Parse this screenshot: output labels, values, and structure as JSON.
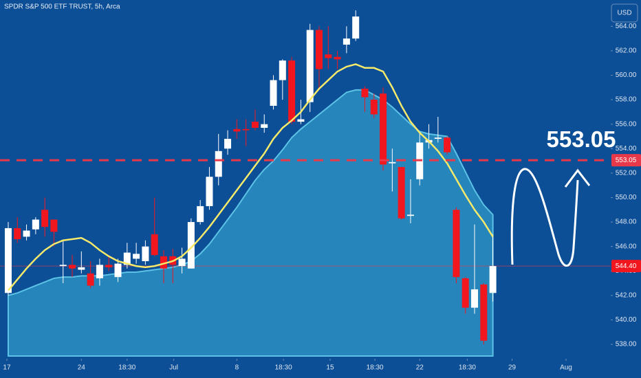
{
  "chart_data": {
    "type": "candlestick",
    "title": "SPDR S&P 500 ETF TRUST, 5h, Arca",
    "currency": "USD",
    "open": [
      542.2,
      547.5,
      546.8,
      547.4,
      549.0,
      548.2,
      544.4,
      544.5,
      544.1,
      543.8,
      543.4,
      544.5,
      543.5,
      544.5,
      545.0,
      544.8,
      547.0,
      545.2,
      545.2,
      544.4,
      544.2,
      548.0,
      549.3,
      551.7,
      554.0,
      555.6,
      555.6,
      556.2,
      555.7,
      557.5,
      559.6,
      561.2,
      556.2,
      557.8,
      563.7,
      561.7,
      561.5,
      562.5,
      563.0,
      558.9,
      558.0,
      558.5,
      552.8,
      552.5,
      548.5,
      551.5,
      554.5,
      554.8,
      554.9,
      549.0,
      543.4,
      541.0,
      542.9,
      542.2
    ],
    "high": [
      548.0,
      548.4,
      547.8,
      548.4,
      550.0,
      548.2,
      546.5,
      545.3,
      545.6,
      544.8,
      545.0,
      545.3,
      545.0,
      546.3,
      546.3,
      546.5,
      550.0,
      545.7,
      545.8,
      545.9,
      548.3,
      549.8,
      552.5,
      555.2,
      555.5,
      556.4,
      556.4,
      557.2,
      556.8,
      560.0,
      561.3,
      561.5,
      558.0,
      564.2,
      564.0,
      564.0,
      562.0,
      564.0,
      565.3,
      559.1,
      558.5,
      559.0,
      554.0,
      552.5,
      551.5,
      555.4,
      556.0,
      556.6,
      555.0,
      549.2,
      543.5,
      547.8,
      543.0,
      547.0
    ],
    "low": [
      542.0,
      546.3,
      546.5,
      547.0,
      546.8,
      546.0,
      543.0,
      543.5,
      543.8,
      542.6,
      542.8,
      544.0,
      543.1,
      544.2,
      544.6,
      544.5,
      545.2,
      543.0,
      543.0,
      543.8,
      544.2,
      547.8,
      549.0,
      551.0,
      553.5,
      554.8,
      554.2,
      555.5,
      555.3,
      557.2,
      558.0,
      556.0,
      556.0,
      557.0,
      558.8,
      560.5,
      560.5,
      561.8,
      562.8,
      557.0,
      556.5,
      552.2,
      550.5,
      548.2,
      547.9,
      551.0,
      554.0,
      554.5,
      553.5,
      543.0,
      540.5,
      540.5,
      538.0,
      541.5
    ],
    "close": [
      547.5,
      546.6,
      547.3,
      548.2,
      547.6,
      547.2,
      544.5,
      544.2,
      544.3,
      542.8,
      544.5,
      544.3,
      544.6,
      545.5,
      545.4,
      546.0,
      545.3,
      544.2,
      544.5,
      545.0,
      548.0,
      549.3,
      551.7,
      553.8,
      554.8,
      555.4,
      555.5,
      555.7,
      556.0,
      559.6,
      561.2,
      556.2,
      556.4,
      563.7,
      560.5,
      561.4,
      561.3,
      563.0,
      564.8,
      558.2,
      556.8,
      552.7,
      552.9,
      548.3,
      548.6,
      554.5,
      554.7,
      554.9,
      553.7,
      543.5,
      541.0,
      542.5,
      538.3,
      544.4
    ],
    "up_color": "#ffffff",
    "down_color": "#f2171e",
    "moving_average": {
      "color": "#f7e96a",
      "values": [
        542.4,
        543.3,
        544.2,
        545.0,
        545.7,
        546.2,
        546.5,
        546.6,
        546.7,
        546.3,
        545.7,
        545.2,
        544.8,
        544.6,
        544.4,
        544.3,
        544.4,
        544.6,
        544.8,
        545.2,
        545.9,
        546.7,
        547.6,
        548.6,
        549.6,
        550.6,
        551.6,
        552.6,
        553.6,
        554.8,
        555.7,
        556.3,
        557.0,
        558.0,
        558.9,
        559.6,
        560.3,
        560.7,
        560.9,
        560.6,
        560.6,
        560.3,
        559.0,
        557.5,
        556.2,
        555.3,
        554.6,
        553.8,
        552.8,
        551.5,
        550.2,
        549.0,
        548.0,
        546.8
      ]
    },
    "area": {
      "color": "#2f97c6",
      "values": [
        542.0,
        542.2,
        542.5,
        542.8,
        543.1,
        543.4,
        543.5,
        543.5,
        543.6,
        543.6,
        543.6,
        543.7,
        543.8,
        543.9,
        543.9,
        544.0,
        544.1,
        544.2,
        544.3,
        544.5,
        544.8,
        545.4,
        546.2,
        547.2,
        548.2,
        549.2,
        550.3,
        551.4,
        552.3,
        553.0,
        553.9,
        554.9,
        555.6,
        556.2,
        556.8,
        557.4,
        558.0,
        558.6,
        558.8,
        558.8,
        558.4,
        558.0,
        557.4,
        556.7,
        556.0,
        555.4,
        555.2,
        555.1,
        555.0,
        553.6,
        552.1,
        550.6,
        549.4,
        548.6
      ]
    },
    "target_line": {
      "value": 553.05,
      "color": "#e8394a"
    },
    "last_price": {
      "value": 544.4,
      "label": "544.40"
    },
    "xlim": [
      -0.9,
      69.2
    ],
    "xticks": [
      {
        "value": -0.15,
        "label": "17"
      },
      {
        "value": 8.0,
        "label": "24"
      },
      {
        "value": 13.0,
        "label": "18:30"
      },
      {
        "value": 18.1,
        "label": "Jul"
      },
      {
        "value": 25.0,
        "label": "8"
      },
      {
        "value": 30.1,
        "label": "18:30"
      },
      {
        "value": 35.2,
        "label": "15"
      },
      {
        "value": 40.1,
        "label": "18:30"
      },
      {
        "value": 45.0,
        "label": "22"
      },
      {
        "value": 50.2,
        "label": "18:30"
      },
      {
        "value": 55.1,
        "label": "29"
      },
      {
        "value": 61.0,
        "label": "Aug"
      }
    ],
    "ylim": [
      535.25,
      566.15
    ],
    "yticks": [
      {
        "value": 538,
        "label": "538.00"
      },
      {
        "value": 540,
        "label": "540.00"
      },
      {
        "value": 542,
        "label": "542.00"
      },
      {
        "value": 544,
        "label": "544.00"
      },
      {
        "value": 546,
        "label": "546.00"
      },
      {
        "value": 548,
        "label": "548.00"
      },
      {
        "value": 550,
        "label": "550.00"
      },
      {
        "value": 552,
        "label": "552.00"
      },
      {
        "value": 554,
        "label": "554.00"
      },
      {
        "value": 556,
        "label": "556.00"
      },
      {
        "value": 558,
        "label": "558.00"
      },
      {
        "value": 560,
        "label": "560.00"
      },
      {
        "value": 562,
        "label": "562.00"
      },
      {
        "value": 564,
        "label": "564.00"
      }
    ]
  }
}
